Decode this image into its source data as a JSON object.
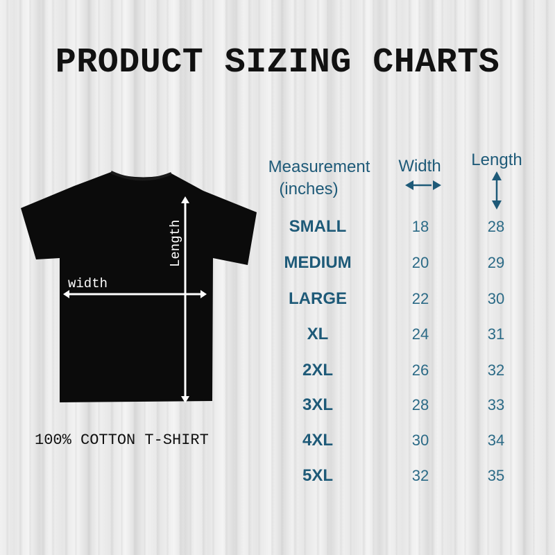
{
  "title": "PRODUCT SIZING CHARTS",
  "caption": "100% COTTON T-SHIRT",
  "shirt": {
    "width_label": "width",
    "length_label": "Length",
    "color": "#0b0b0b"
  },
  "table": {
    "header": {
      "measurement": "Measurement",
      "units": "(inches)",
      "width": "Width",
      "length": "Length"
    },
    "rows": [
      {
        "size": "SMALL",
        "width": "18",
        "length": "28"
      },
      {
        "size": "MEDIUM",
        "width": "20",
        "length": "29"
      },
      {
        "size": "LARGE",
        "width": "22",
        "length": "30"
      },
      {
        "size": "XL",
        "width": "24",
        "length": "31"
      },
      {
        "size": "2XL",
        "width": "26",
        "length": "32"
      },
      {
        "size": "3XL",
        "width": "28",
        "length": "33"
      },
      {
        "size": "4XL",
        "width": "30",
        "length": "34"
      },
      {
        "size": "5XL",
        "width": "32",
        "length": "35"
      }
    ]
  },
  "colors": {
    "accent": "#1e5a78",
    "values": "#2b6a86"
  }
}
